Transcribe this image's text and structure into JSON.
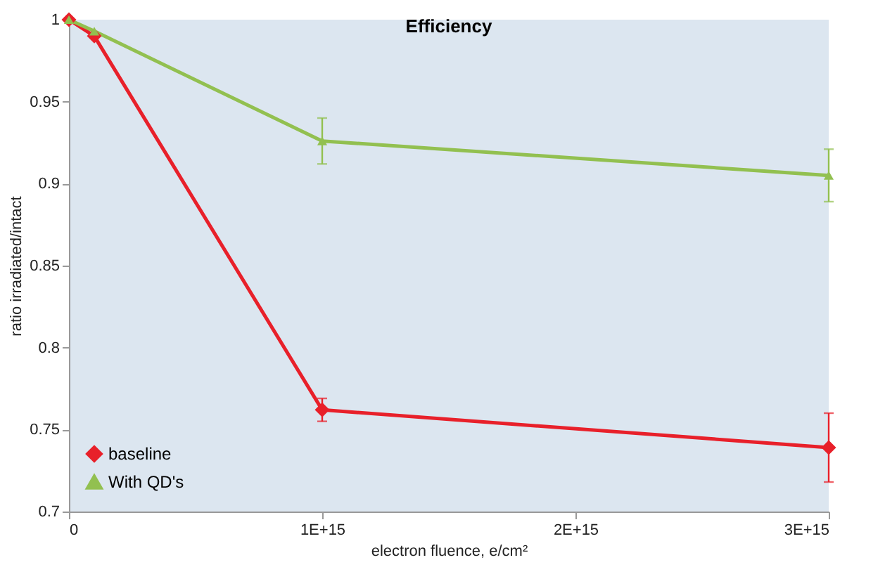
{
  "chart_data": {
    "type": "line",
    "title": "Efficiency",
    "xlabel": "electron fluence, e/cm²",
    "ylabel": "ratio irradiated/intact",
    "x": [
      0,
      100000000000000.0,
      1000000000000000.0,
      3000000000000000.0
    ],
    "series": [
      {
        "name": "baseline",
        "color": "#e8202a",
        "marker": "diamond",
        "values": [
          1,
          0.99,
          0.762,
          0.739
        ],
        "errors": [
          null,
          null,
          0.007,
          0.021
        ]
      },
      {
        "name": "With QD's",
        "color": "#92c050",
        "marker": "triangle",
        "values": [
          1,
          0.993,
          0.926,
          0.905
        ],
        "errors": [
          null,
          null,
          0.014,
          0.016
        ]
      }
    ],
    "xlim": [
      0,
      3000000000000000.0
    ],
    "xticks": [
      0,
      {
        "value": 1000000000000000.0,
        "label": "1E+15"
      },
      {
        "value": 2000000000000000.0,
        "label": "2E+15"
      },
      {
        "value": 3000000000000000.0,
        "label": "3E+15"
      }
    ],
    "ylim": [
      0.7,
      1
    ],
    "yticks": [
      0.7,
      0.75,
      0.8,
      0.85,
      0.9,
      0.95,
      1
    ],
    "grid": false,
    "legend": "bottom left",
    "line_style": "solid"
  }
}
